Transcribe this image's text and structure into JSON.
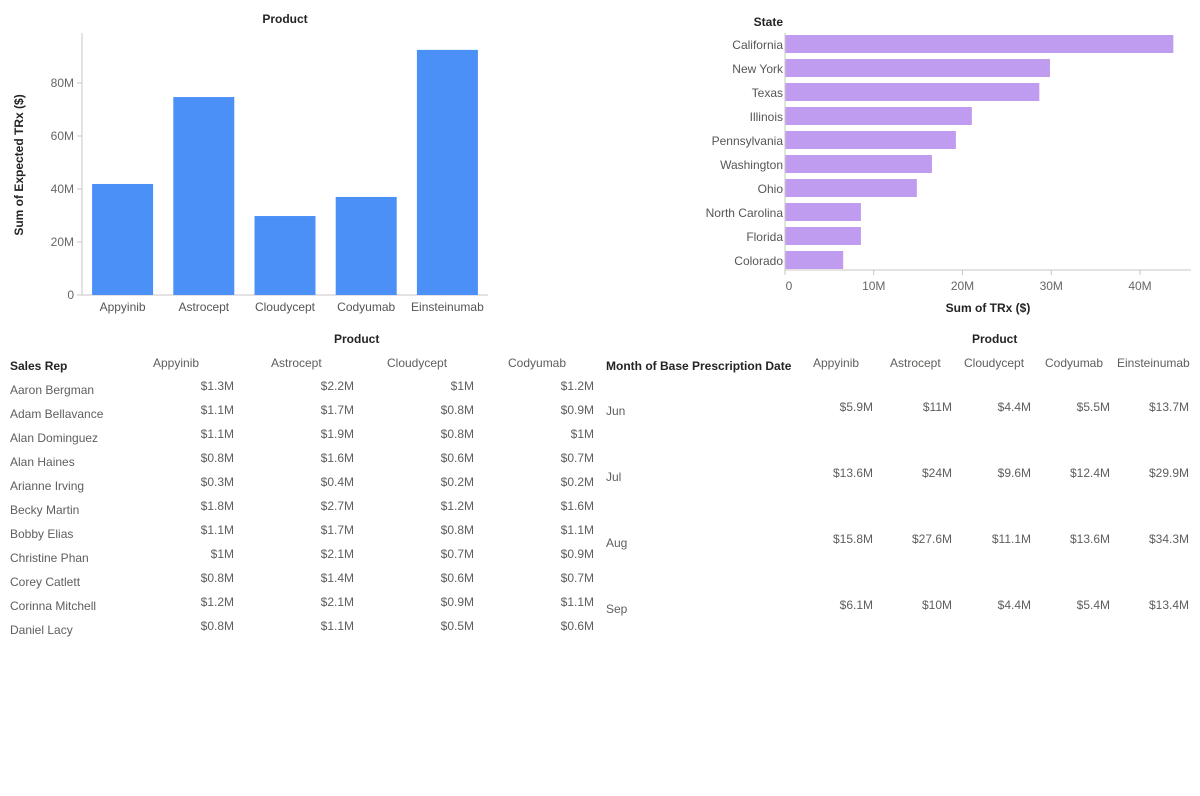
{
  "chart_data": [
    {
      "id": "product-column-chart",
      "type": "bar",
      "orientation": "vertical",
      "title": "Product",
      "xlabel": "",
      "ylabel": "Sum of Expected TRx ($)",
      "categories": [
        "Appyinib",
        "Astrocept",
        "Cloudycept",
        "Codyumab",
        "Einsteinumab"
      ],
      "values": [
        41900000,
        74700000,
        29800000,
        37000000,
        92500000
      ],
      "ylim": [
        0,
        98000000
      ],
      "yticks": [
        0,
        20000000,
        40000000,
        60000000,
        80000000
      ],
      "ytick_labels": [
        "0",
        "20M",
        "40M",
        "60M",
        "80M"
      ],
      "grid": false,
      "legend": "none",
      "color": "#4a90f7"
    },
    {
      "id": "state-bar-chart",
      "type": "bar",
      "orientation": "horizontal",
      "title": "State",
      "xlabel": "Sum of TRx ($)",
      "ylabel": "",
      "categories": [
        "California",
        "New York",
        "Texas",
        "Illinois",
        "Pennsylvania",
        "Washington",
        "Ohio",
        "North Carolina",
        "Florida",
        "Colorado"
      ],
      "values": [
        43700000,
        29800000,
        28600000,
        21000000,
        19200000,
        16500000,
        14800000,
        8500000,
        8500000,
        6500000
      ],
      "xlim": [
        0,
        46000000
      ],
      "xticks": [
        0,
        10000000,
        20000000,
        30000000,
        40000000
      ],
      "xtick_labels": [
        "0",
        "10M",
        "20M",
        "30M",
        "40M"
      ],
      "grid": false,
      "legend": "none",
      "color": "#c09cf0"
    },
    {
      "id": "sales-rep-matrix",
      "type": "table",
      "title": "Product",
      "row_header": "Sales Rep",
      "columns": [
        "Appyinib",
        "Astrocept",
        "Cloudycept",
        "Codyumab"
      ],
      "rows": [
        {
          "label": "Aaron Bergman",
          "values": [
            "$1.3M",
            "$2.2M",
            "$1M",
            "$1.2M"
          ]
        },
        {
          "label": "Adam Bellavance",
          "values": [
            "$1.1M",
            "$1.7M",
            "$0.8M",
            "$0.9M"
          ]
        },
        {
          "label": "Alan Dominguez",
          "values": [
            "$1.1M",
            "$1.9M",
            "$0.8M",
            "$1M"
          ]
        },
        {
          "label": "Alan Haines",
          "values": [
            "$0.8M",
            "$1.6M",
            "$0.6M",
            "$0.7M"
          ]
        },
        {
          "label": "Arianne Irving",
          "values": [
            "$0.3M",
            "$0.4M",
            "$0.2M",
            "$0.2M"
          ]
        },
        {
          "label": "Becky Martin",
          "values": [
            "$1.8M",
            "$2.7M",
            "$1.2M",
            "$1.6M"
          ]
        },
        {
          "label": "Bobby Elias",
          "values": [
            "$1.1M",
            "$1.7M",
            "$0.8M",
            "$1.1M"
          ]
        },
        {
          "label": "Christine Phan",
          "values": [
            "$1M",
            "$2.1M",
            "$0.7M",
            "$0.9M"
          ]
        },
        {
          "label": "Corey Catlett",
          "values": [
            "$0.8M",
            "$1.4M",
            "$0.6M",
            "$0.7M"
          ]
        },
        {
          "label": "Corinna Mitchell",
          "values": [
            "$1.2M",
            "$2.1M",
            "$0.9M",
            "$1.1M"
          ]
        },
        {
          "label": "Daniel Lacy",
          "values": [
            "$0.8M",
            "$1.1M",
            "$0.5M",
            "$0.6M"
          ]
        }
      ]
    },
    {
      "id": "month-matrix",
      "type": "table",
      "title": "Product",
      "row_header": "Month of Base Prescription Date",
      "columns": [
        "Appyinib",
        "Astrocept",
        "Cloudycept",
        "Codyumab",
        "Einsteinumab"
      ],
      "rows": [
        {
          "label": "Jun",
          "values": [
            "$5.9M",
            "$11M",
            "$4.4M",
            "$5.5M",
            "$13.7M"
          ]
        },
        {
          "label": "Jul",
          "values": [
            "$13.6M",
            "$24M",
            "$9.6M",
            "$12.4M",
            "$29.9M"
          ]
        },
        {
          "label": "Aug",
          "values": [
            "$15.8M",
            "$27.6M",
            "$11.1M",
            "$13.6M",
            "$34.3M"
          ]
        },
        {
          "label": "Sep",
          "values": [
            "$6.1M",
            "$10M",
            "$4.4M",
            "$5.4M",
            "$13.4M"
          ]
        }
      ]
    }
  ]
}
